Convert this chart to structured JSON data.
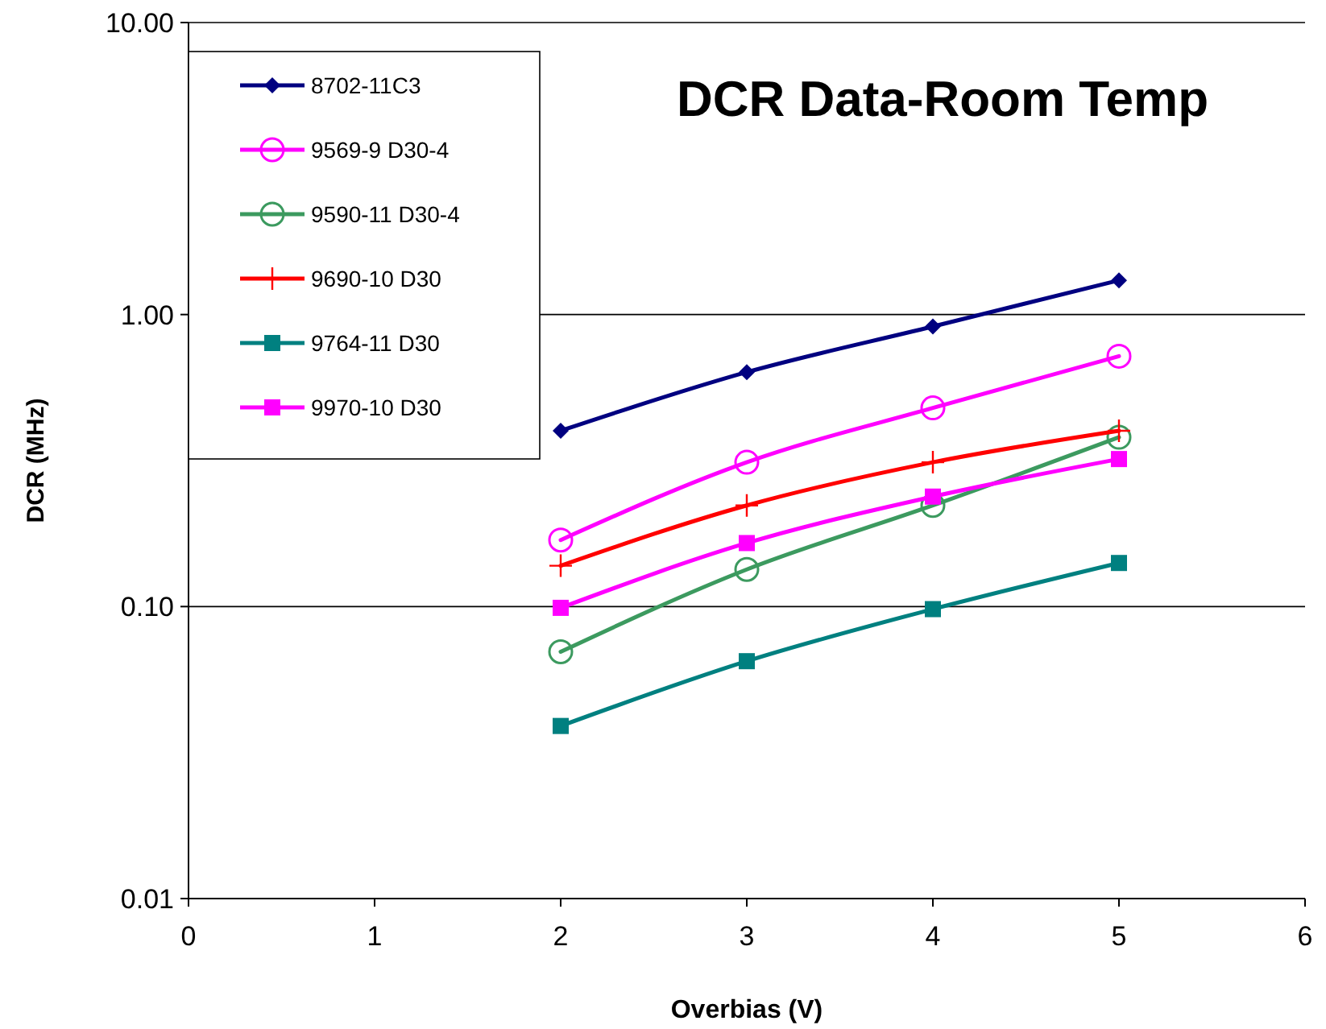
{
  "chart_data": {
    "type": "line",
    "title": "DCR Data-Room Temp",
    "xlabel": "Overbias (V)",
    "ylabel": "DCR (MHz)",
    "log": "y",
    "grid": "y",
    "legend": "top left",
    "x": [
      2,
      3,
      4,
      5
    ],
    "xlim": [
      0,
      6
    ],
    "xticks": [
      0,
      1,
      2,
      3,
      4,
      5,
      6
    ],
    "ylim": [
      0.01,
      10
    ],
    "yticks": [
      {
        "value": 0.01,
        "label": "0.01"
      },
      {
        "value": 0.1,
        "label": "0.10"
      },
      {
        "value": 1,
        "label": "1.00"
      },
      {
        "value": 10,
        "label": "10.00"
      }
    ],
    "series": [
      {
        "name": "8702-11C3",
        "color": "#000080",
        "marker": "diamond",
        "values": [
          0.4,
          0.635,
          0.91,
          1.31
        ]
      },
      {
        "name": "9569-9 D30-4",
        "color": "#ff00ff",
        "marker": "circle",
        "values": [
          0.169,
          0.312,
          0.479,
          0.72
        ]
      },
      {
        "name": "9590-11 D30-4",
        "color": "#3c9a5f",
        "marker": "circle",
        "values": [
          0.07,
          0.134,
          0.222,
          0.38
        ]
      },
      {
        "name": "9690-10 D30",
        "color": "#ff0000",
        "marker": "cross",
        "values": [
          0.138,
          0.222,
          0.312,
          0.4
        ]
      },
      {
        "name": "9764-11 D30",
        "color": "#008080",
        "marker": "square",
        "values": [
          0.039,
          0.065,
          0.098,
          0.141
        ]
      },
      {
        "name": "9970-10 D30",
        "color": "#ff00ff",
        "marker": "square",
        "values": [
          0.099,
          0.165,
          0.238,
          0.32
        ]
      }
    ]
  }
}
